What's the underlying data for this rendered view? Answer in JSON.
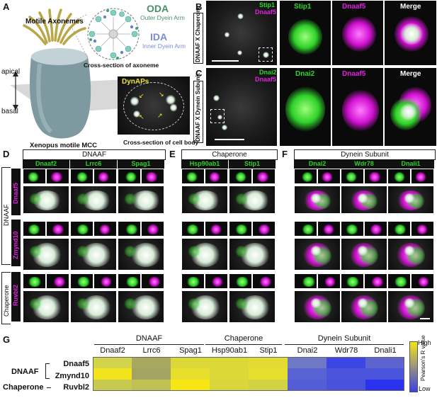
{
  "panels": {
    "a": "A",
    "b": "B",
    "c": "C",
    "d": "D",
    "e": "E",
    "f": "F",
    "g": "G"
  },
  "panelA": {
    "title": "Motile Axonemes",
    "apical": "apical",
    "basal": "basal",
    "cell_label": "Xenopus motile MCC",
    "oda": "ODA",
    "oda_full": "Outer Dyein Arm",
    "ida": "IDA",
    "ida_full": "Inner Dyein Arm",
    "cross_axoneme": "Cross-section of axoneme",
    "dynaps": "DynAPs",
    "cross_cell": "Cross-section of cell body"
  },
  "panelB": {
    "side": "DNAAF X Chaperone",
    "green": "Stip1",
    "magenta": "Dnaaf5",
    "c1": "Stip1",
    "c2": "Dnaaf5",
    "c3": "Merge"
  },
  "panelC": {
    "side": "DNAAF X Dynein Subunit",
    "green": "Dnai2",
    "magenta": "Dnaaf5",
    "c1": "Dnai2",
    "c2": "Dnaaf5",
    "c3": "Merge"
  },
  "panelD": {
    "header": "DNAAF",
    "cols": [
      "Dnaaf2",
      "Lrrc6",
      "Spag1"
    ]
  },
  "panelE": {
    "header": "Chaperone",
    "cols": [
      "Hsp90ab1",
      "Stip1"
    ]
  },
  "panelF": {
    "header": "Dynein Subunit",
    "cols": [
      "Dnai2",
      "Wdr78",
      "Dnali1"
    ]
  },
  "rows": {
    "group1": "DNAAF",
    "group2": "Chaperone",
    "r1": "Dnaaf5",
    "r2": "Zmynd10",
    "r3": "Ruvbl2"
  },
  "heatmap": {
    "groups": [
      "DNAAF",
      "Chaperone",
      "Dynein Subunit"
    ],
    "cols": [
      "Dnaaf2",
      "Lrrc6",
      "Spag1",
      "Hsp90ab1",
      "Stip1",
      "Dnai2",
      "Wdr78",
      "Dnali1"
    ],
    "row_group1": "DNAAF",
    "row_group2": "Chaperone",
    "rows": [
      "Dnaaf5",
      "Zmynd10",
      "Ruvbl2"
    ],
    "colors": [
      [
        "#d2d44c",
        "#a8a860",
        "#dcd838",
        "#dcd838",
        "#e2dc30",
        "#6f78c4",
        "#3c46e4",
        "#5d64d0"
      ],
      [
        "#f2e41c",
        "#a4a462",
        "#e7df2c",
        "#dcd838",
        "#e6de2c",
        "#5a63d4",
        "#4a54dc",
        "#4a54dc"
      ],
      [
        "#c8ca50",
        "#c0c054",
        "#f6e614",
        "#d8d63c",
        "#d2d244",
        "#555cd8",
        "#4a52dc",
        "#2a32f0"
      ]
    ],
    "legend_high": "High",
    "legend_low": "Low",
    "legend_title": "Pearson's R value"
  }
}
